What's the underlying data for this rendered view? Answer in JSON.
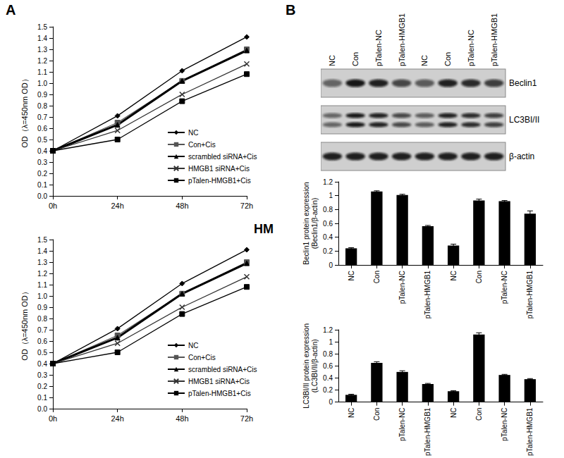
{
  "panels": [
    "A",
    "B"
  ],
  "annotation": "HM",
  "blot": {
    "lanes": [
      "NC",
      "Con",
      "pTalen-NC",
      "pTalen-HMGB1",
      "NC",
      "Con",
      "pTalen-NC",
      "pTalen-HMGB1"
    ],
    "rows": [
      "Beclin1",
      "LC3BI/II",
      "β-actin"
    ]
  },
  "chart_data": [
    {
      "type": "line",
      "ylabel": "OD（λ=450nm OD）",
      "categories": [
        "0h",
        "24h",
        "48h",
        "72h"
      ],
      "ylim": [
        0,
        1.5
      ],
      "yticks": [
        {
          "value": 0,
          "label": "0.0"
        },
        0.1,
        0.2,
        0.3,
        0.4,
        0.5,
        0.6,
        0.7,
        0.8,
        0.9,
        {
          "value": 1,
          "label": "1.0"
        },
        1.1,
        1.2,
        1.3,
        1.4,
        1.5
      ],
      "grid": false,
      "series": [
        {
          "name": "NC",
          "color": "#000000",
          "marker": "diamond",
          "line_style": "solid",
          "values": [
            0.4,
            0.71,
            1.11,
            1.41
          ]
        },
        {
          "name": "Con+Cis",
          "color": "#555555",
          "marker": "square",
          "line_style": "solid",
          "values": [
            0.4,
            0.65,
            1.02,
            1.3
          ]
        },
        {
          "name": "scrambled siRNA+Cis",
          "color": "#000000",
          "marker": "triangle",
          "line_style": "bold",
          "values": [
            0.4,
            0.63,
            1.02,
            1.29
          ]
        },
        {
          "name": "HMGB1 siRNA+Cis",
          "color": "#333333",
          "marker": "x",
          "line_style": "solid",
          "values": [
            0.4,
            0.58,
            0.9,
            1.17
          ]
        },
        {
          "name": "pTalen-HMGB1+Cis",
          "color": "#000000",
          "marker": "square",
          "line_style": "solid",
          "values": [
            0.4,
            0.5,
            0.84,
            1.08
          ]
        }
      ]
    },
    {
      "type": "line",
      "ylabel": "OD（λ=450nm OD）",
      "categories": [
        "0h",
        "24h",
        "48h",
        "72h"
      ],
      "ylim": [
        0,
        1.5
      ],
      "yticks": [
        {
          "value": 0,
          "label": "0.0"
        },
        0.1,
        0.2,
        0.3,
        0.4,
        0.5,
        0.6,
        0.7,
        0.8,
        0.9,
        {
          "value": 1,
          "label": "1.0"
        },
        1.1,
        1.2,
        1.3,
        1.4,
        1.5
      ],
      "grid": false,
      "series": [
        {
          "name": "NC",
          "color": "#000000",
          "marker": "diamond",
          "line_style": "solid",
          "values": [
            0.4,
            0.71,
            1.11,
            1.41
          ]
        },
        {
          "name": "Con+Cis",
          "color": "#555555",
          "marker": "square",
          "line_style": "solid",
          "values": [
            0.4,
            0.65,
            1.02,
            1.3
          ]
        },
        {
          "name": "scrambled siRNA+Cis",
          "color": "#000000",
          "marker": "triangle",
          "line_style": "bold",
          "values": [
            0.4,
            0.63,
            1.02,
            1.29
          ]
        },
        {
          "name": "HMGB1 siRNA+Cis",
          "color": "#333333",
          "marker": "x",
          "line_style": "solid",
          "values": [
            0.4,
            0.58,
            0.9,
            1.17
          ]
        },
        {
          "name": "pTalen-HMGB1+Cis",
          "color": "#000000",
          "marker": "square",
          "line_style": "solid",
          "values": [
            0.4,
            0.5,
            0.84,
            1.08
          ]
        }
      ]
    },
    {
      "type": "bar",
      "ylabel": "Beclin1 protein expression\n(Beclin1/β-actin)",
      "categories": [
        "NC",
        "Con",
        "pTalen-NC",
        "pTalen-HMGB1",
        "NC",
        "Con",
        "pTalen-NC",
        "pTalen-HMGB1"
      ],
      "values": [
        0.24,
        1.06,
        1.01,
        0.56,
        0.28,
        0.93,
        0.92,
        0.74
      ],
      "errors": [
        0.01,
        0.01,
        0.01,
        0.01,
        0.02,
        0.02,
        0.01,
        0.04
      ],
      "color": "#000000",
      "ylim": [
        0,
        1.2
      ],
      "yticks": [
        0,
        0.2,
        0.4,
        0.6,
        0.8,
        1,
        1.2
      ],
      "grid": false
    },
    {
      "type": "bar",
      "ylabel": "LC3BI/II protein expression\n(LC3BI/II/β-actin)",
      "categories": [
        "NC",
        "Con",
        "pTalen-NC",
        "pTalen-HMGB1",
        "NC",
        "Con",
        "pTalen-NC",
        "pTalen-HMGB1"
      ],
      "values": [
        0.12,
        0.65,
        0.5,
        0.3,
        0.18,
        1.12,
        0.45,
        0.38
      ],
      "errors": [
        0.01,
        0.02,
        0.02,
        0.01,
        0.01,
        0.03,
        0.01,
        0.01
      ],
      "color": "#000000",
      "ylim": [
        0,
        1.2
      ],
      "yticks": [
        0,
        0.2,
        0.4,
        0.6,
        0.8,
        1,
        1.2
      ],
      "grid": false
    }
  ]
}
